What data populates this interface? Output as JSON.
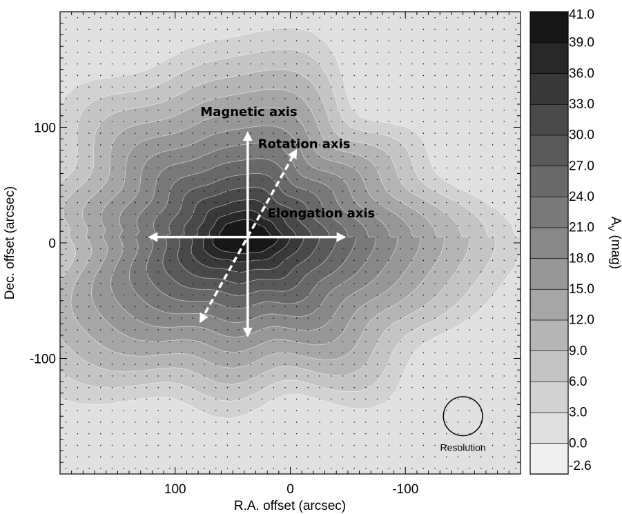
{
  "chart_data": {
    "type": "heatmap",
    "title": "",
    "xlabel": "R.A. offset (arcsec)",
    "ylabel": "Dec. offset (arcsec)",
    "xlim": [
      200,
      -200
    ],
    "ylim": [
      -200,
      200
    ],
    "x_ticks": [
      {
        "value": 100,
        "label": "100"
      },
      {
        "value": 0,
        "label": "0"
      },
      {
        "value": -100,
        "label": "-100"
      }
    ],
    "y_ticks": [
      {
        "value": 100,
        "label": "100"
      },
      {
        "value": 0,
        "label": "0"
      },
      {
        "value": -100,
        "label": "-100"
      }
    ],
    "grid": "dotted",
    "colorbar": {
      "label_main": "A",
      "label_sub": "V",
      "label_unit": " (mag)",
      "levels": [
        "-2.6",
        "0.0",
        "3.0",
        "6.0",
        "9.0",
        "12.0",
        "15.0",
        "18.0",
        "21.0",
        "24.0",
        "27.0",
        "30.0",
        "33.0",
        "36.0",
        "39.0",
        "41.0"
      ],
      "colors": [
        "#efefef",
        "#e0e0e0",
        "#d2d2d2",
        "#c4c4c4",
        "#b5b5b5",
        "#a6a6a6",
        "#979797",
        "#888888",
        "#797979",
        "#696969",
        "#595959",
        "#494949",
        "#393939",
        "#282828",
        "#171717"
      ]
    },
    "peak": {
      "x": 40,
      "y": 5,
      "value": 41.0
    },
    "axes_arrows": [
      {
        "name": "Magnetic axis",
        "style": "solid",
        "from": [
          37,
          -80
        ],
        "to": [
          37,
          95
        ]
      },
      {
        "name": "Elongation axis",
        "style": "solid",
        "from": [
          122,
          5
        ],
        "to": [
          -47,
          5
        ]
      },
      {
        "name": "Rotation axis",
        "style": "dashed",
        "from": [
          78,
          -68
        ],
        "to": [
          -5,
          80
        ]
      }
    ],
    "annotations": [
      {
        "text": "Magnetic axis",
        "x": 36,
        "y": 110
      },
      {
        "text": "Rotation axis",
        "x": -12,
        "y": 82
      },
      {
        "text": "Elongation axis",
        "x": -27,
        "y": 22
      },
      {
        "text": "Resolution",
        "x": -150,
        "y": -180
      }
    ],
    "beam": {
      "x": -150,
      "y": -150,
      "diameter": 34
    }
  }
}
